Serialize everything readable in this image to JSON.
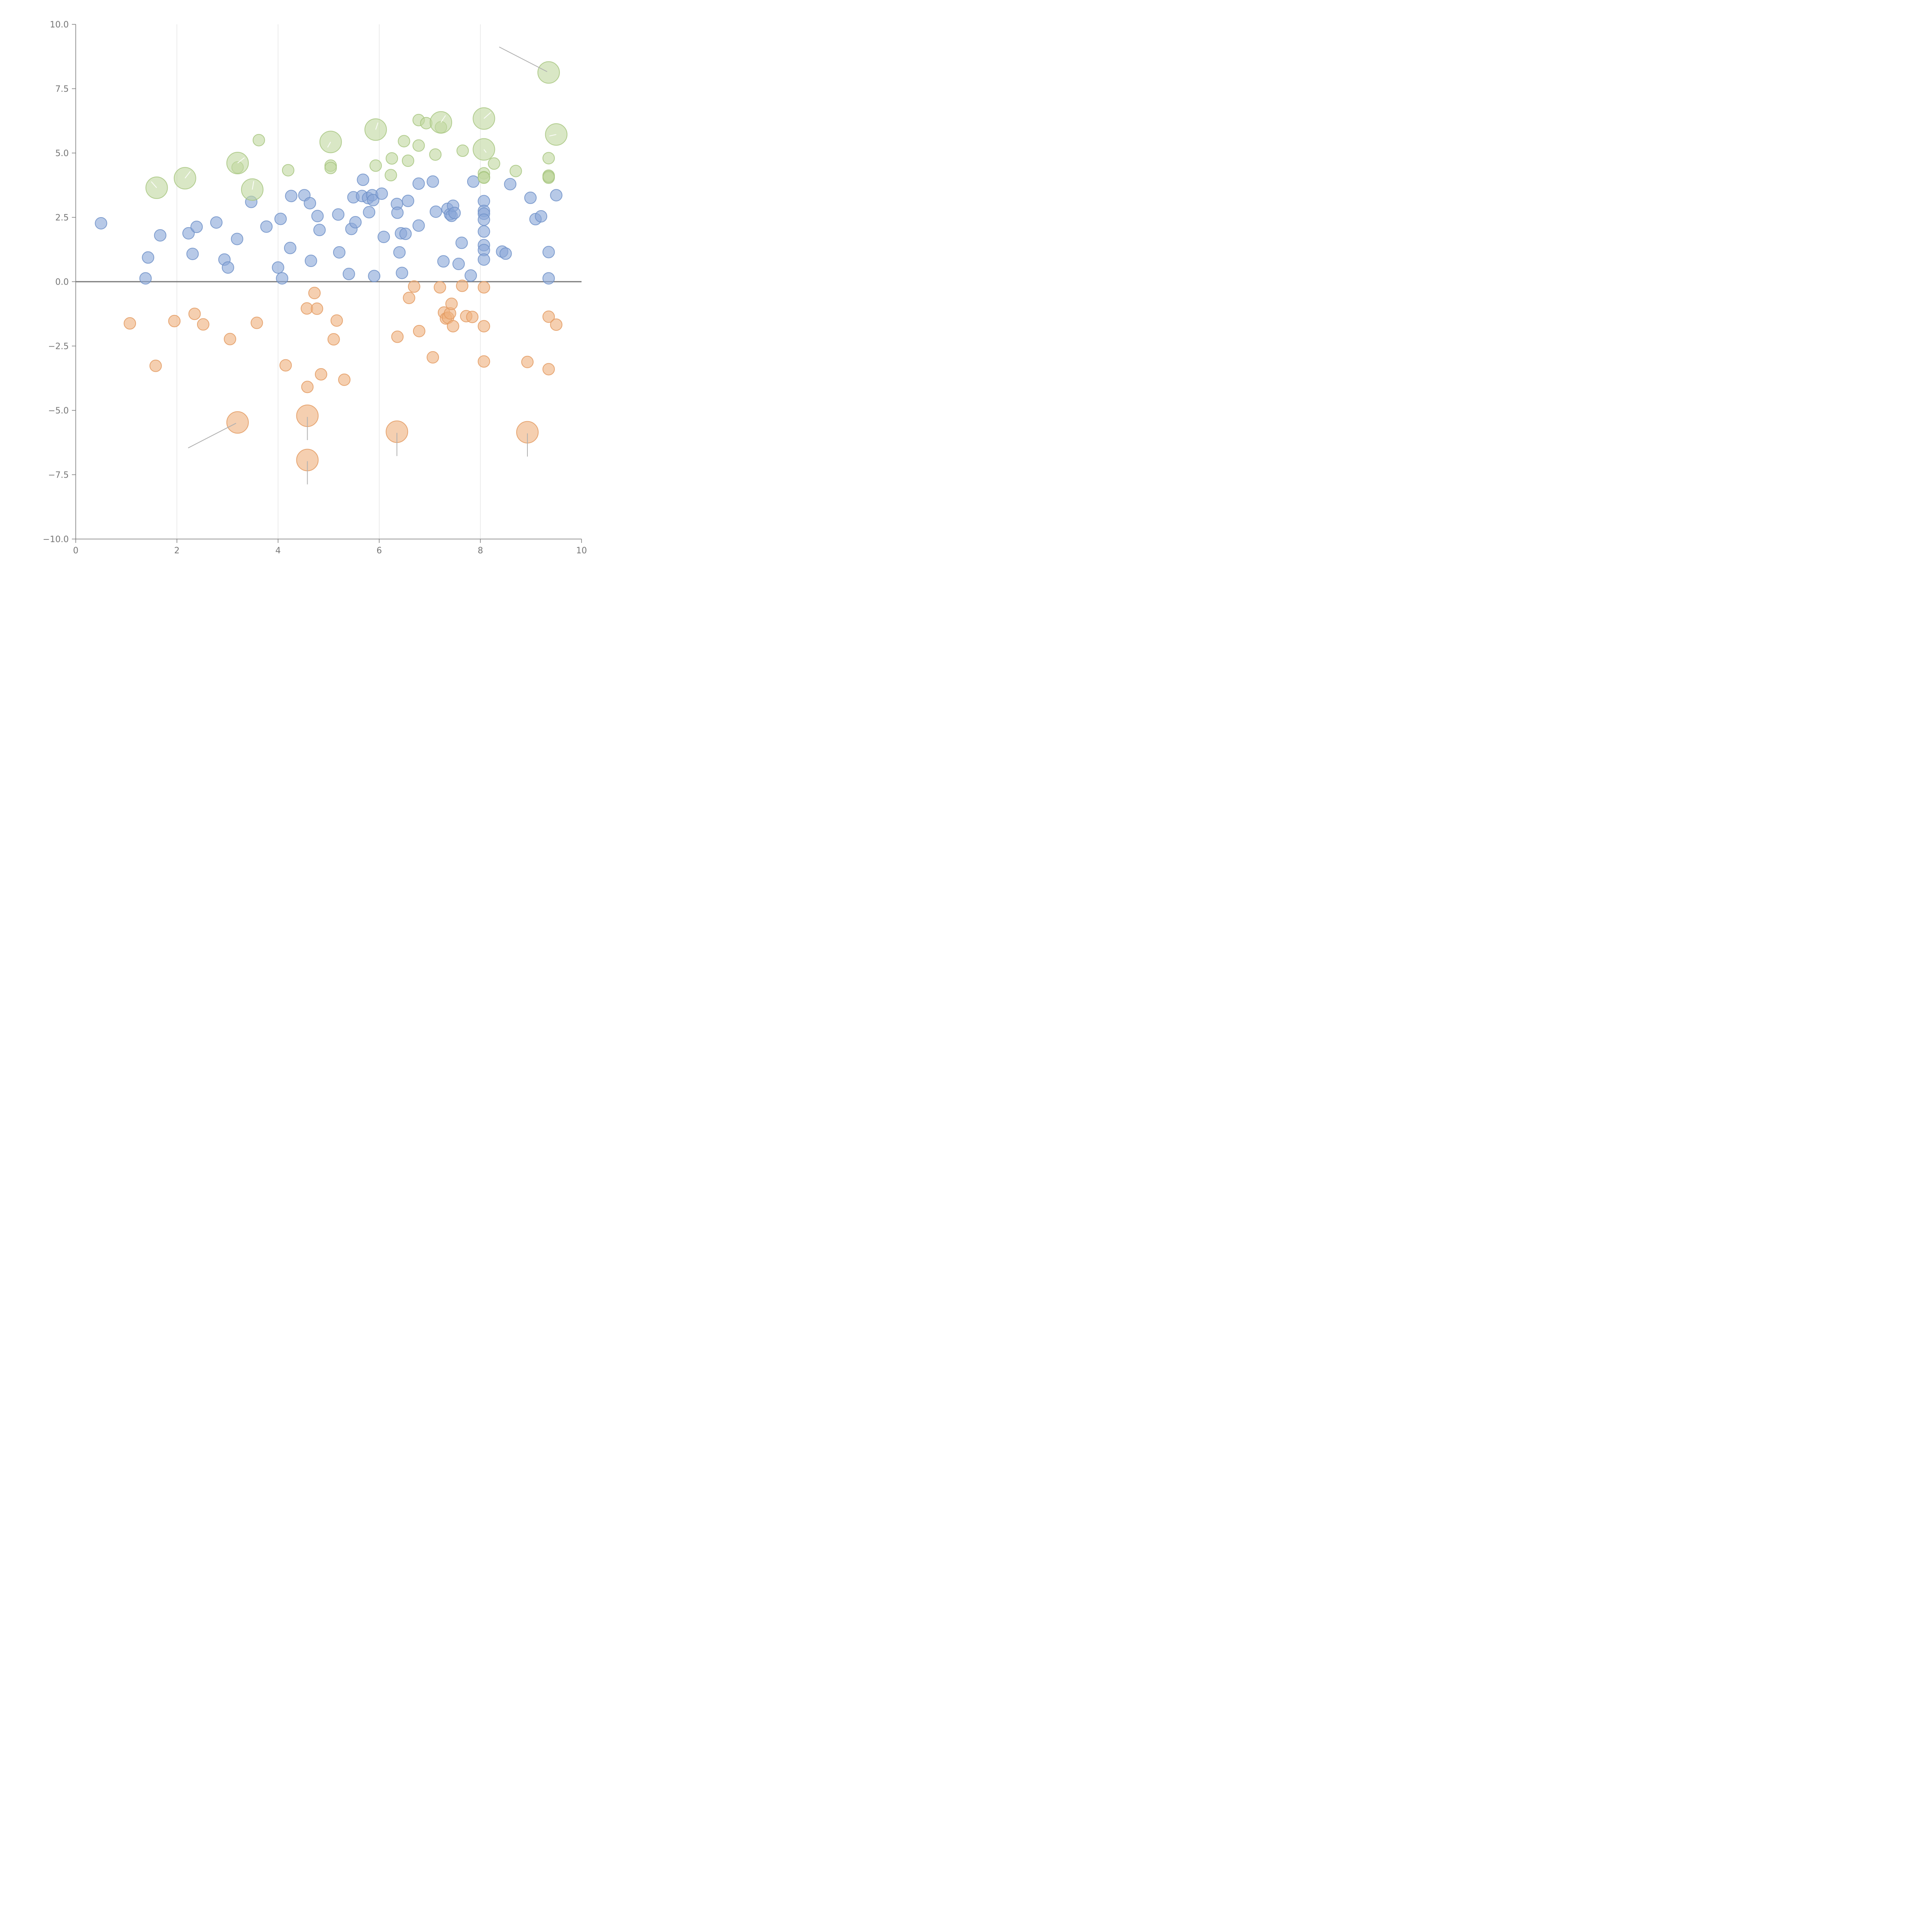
{
  "chart_data": {
    "type": "scatter",
    "title": "",
    "xlabel": "",
    "ylabel": "",
    "xlim": [
      0,
      10
    ],
    "ylim": [
      -10,
      10
    ],
    "grid": {
      "x": true,
      "y": false
    },
    "x_ticks": [
      0,
      2,
      4,
      6,
      8,
      10
    ],
    "x_tick_labels": [
      "0",
      "2",
      "4",
      "6",
      "8",
      "10"
    ],
    "y_ticks": [
      10,
      7.5,
      5,
      2.5,
      0,
      -2.5,
      -5,
      -7.5,
      -10
    ],
    "y_tick_labels": [
      "10.0",
      "7.5",
      "5.0",
      "2.5",
      "0.0",
      "−2.5",
      "−5.0",
      "−7.5",
      "−10.0"
    ],
    "reference_line_y": 0,
    "series": [
      {
        "name": "blue",
        "color": "#8aa8d8",
        "stroke": "#6f90c8",
        "points": [
          [
            0.5,
            2.27
          ],
          [
            1.43,
            0.94
          ],
          [
            1.38,
            0.13
          ],
          [
            1.67,
            1.8
          ],
          [
            2.23,
            1.88
          ],
          [
            2.39,
            2.13
          ],
          [
            2.31,
            1.08
          ],
          [
            2.78,
            2.3
          ],
          [
            2.94,
            0.86
          ],
          [
            3.01,
            0.55
          ],
          [
            3.19,
            1.66
          ],
          [
            3.47,
            3.1
          ],
          [
            3.77,
            2.14
          ],
          [
            4.0,
            0.55
          ],
          [
            4.08,
            0.13
          ],
          [
            4.05,
            2.44
          ],
          [
            4.24,
            1.31
          ],
          [
            4.26,
            3.33
          ],
          [
            4.52,
            3.36
          ],
          [
            4.63,
            3.05
          ],
          [
            4.65,
            0.81
          ],
          [
            4.78,
            2.55
          ],
          [
            4.82,
            2.01
          ],
          [
            5.19,
            2.61
          ],
          [
            5.21,
            1.14
          ],
          [
            5.4,
            0.3
          ],
          [
            5.45,
            2.05
          ],
          [
            5.49,
            3.28
          ],
          [
            5.53,
            2.31
          ],
          [
            5.66,
            3.33
          ],
          [
            5.68,
            3.96
          ],
          [
            5.78,
            3.25
          ],
          [
            5.8,
            2.7
          ],
          [
            5.86,
            3.36
          ],
          [
            5.88,
            3.17
          ],
          [
            5.9,
            0.22
          ],
          [
            6.05,
            3.42
          ],
          [
            6.09,
            1.74
          ],
          [
            6.35,
            3.02
          ],
          [
            6.36,
            2.68
          ],
          [
            6.4,
            1.14
          ],
          [
            6.43,
            1.88
          ],
          [
            6.45,
            0.34
          ],
          [
            6.52,
            1.86
          ],
          [
            6.57,
            3.14
          ],
          [
            6.78,
            3.81
          ],
          [
            6.78,
            2.18
          ],
          [
            7.06,
            3.89
          ],
          [
            7.12,
            2.72
          ],
          [
            7.27,
            0.79
          ],
          [
            7.35,
            2.83
          ],
          [
            7.4,
            2.62
          ],
          [
            7.43,
            2.56
          ],
          [
            7.46,
            2.95
          ],
          [
            7.49,
            2.67
          ],
          [
            7.57,
            0.69
          ],
          [
            7.63,
            1.51
          ],
          [
            7.81,
            0.24
          ],
          [
            7.86,
            3.89
          ],
          [
            8.07,
            3.13
          ],
          [
            8.07,
            2.75
          ],
          [
            8.07,
            2.64
          ],
          [
            8.07,
            2.41
          ],
          [
            8.07,
            1.95
          ],
          [
            8.07,
            1.42
          ],
          [
            8.07,
            1.23
          ],
          [
            8.07,
            0.86
          ],
          [
            8.43,
            1.17
          ],
          [
            8.5,
            1.09
          ],
          [
            8.59,
            3.79
          ],
          [
            8.99,
            3.26
          ],
          [
            9.09,
            2.43
          ],
          [
            9.2,
            2.54
          ],
          [
            9.35,
            1.15
          ],
          [
            9.35,
            0.13
          ],
          [
            9.5,
            3.36
          ]
        ]
      },
      {
        "name": "orange",
        "color": "#efb17f",
        "stroke": "#e39a60",
        "points": [
          [
            1.07,
            -1.62
          ],
          [
            1.58,
            -3.27
          ],
          [
            1.95,
            -1.53
          ],
          [
            2.35,
            -1.25
          ],
          [
            2.52,
            -1.66
          ],
          [
            3.05,
            -2.23
          ],
          [
            3.58,
            -1.6
          ],
          [
            4.15,
            -3.25
          ],
          [
            4.57,
            -1.04
          ],
          [
            4.72,
            -0.44
          ],
          [
            4.77,
            -1.05
          ],
          [
            4.85,
            -3.6
          ],
          [
            5.1,
            -2.24
          ],
          [
            5.16,
            -1.51
          ],
          [
            5.31,
            -3.81
          ],
          [
            6.36,
            -2.14
          ],
          [
            6.59,
            -0.63
          ],
          [
            6.69,
            -0.19
          ],
          [
            6.79,
            -1.92
          ],
          [
            7.06,
            -2.94
          ],
          [
            7.2,
            -0.22
          ],
          [
            7.28,
            -1.2
          ],
          [
            7.32,
            -1.43
          ],
          [
            7.36,
            -1.4
          ],
          [
            7.4,
            -1.23
          ],
          [
            7.43,
            -0.86
          ],
          [
            7.46,
            -1.73
          ],
          [
            7.64,
            -0.16
          ],
          [
            7.72,
            -1.34
          ],
          [
            7.84,
            -1.37
          ],
          [
            8.07,
            -0.22
          ],
          [
            8.07,
            -1.73
          ],
          [
            8.07,
            -3.1
          ],
          [
            8.93,
            -3.12
          ],
          [
            9.35,
            -1.36
          ],
          [
            9.35,
            -3.4
          ],
          [
            9.5,
            -1.67
          ],
          [
            4.58,
            -4.09
          ]
        ],
        "highlighted": [
          [
            3.2,
            -5.47
          ],
          [
            4.58,
            -5.21
          ],
          [
            4.58,
            -6.93
          ],
          [
            6.35,
            -5.83
          ],
          [
            8.93,
            -5.85
          ]
        ]
      },
      {
        "name": "green",
        "color": "#c2d9a2",
        "stroke": "#a7c67f",
        "points": [
          [
            3.2,
            4.44
          ],
          [
            3.62,
            5.5
          ],
          [
            4.2,
            4.33
          ],
          [
            5.04,
            4.51
          ],
          [
            5.04,
            4.42
          ],
          [
            5.93,
            4.51
          ],
          [
            6.23,
            4.14
          ],
          [
            6.25,
            4.79
          ],
          [
            6.49,
            5.46
          ],
          [
            6.57,
            4.7
          ],
          [
            6.78,
            6.28
          ],
          [
            6.78,
            5.29
          ],
          [
            6.93,
            6.16
          ],
          [
            7.11,
            4.94
          ],
          [
            7.22,
            6.0
          ],
          [
            7.65,
            5.09
          ],
          [
            8.07,
            4.21
          ],
          [
            8.07,
            4.06
          ],
          [
            8.07,
            4.04
          ],
          [
            8.27,
            4.59
          ],
          [
            8.7,
            4.3
          ],
          [
            9.35,
            4.8
          ],
          [
            9.35,
            4.12
          ],
          [
            9.35,
            4.04
          ],
          [
            9.35,
            4.08
          ]
        ],
        "highlighted": [
          [
            1.6,
            3.65
          ],
          [
            2.16,
            4.02
          ],
          [
            3.2,
            4.61
          ],
          [
            3.49,
            3.58
          ],
          [
            5.04,
            5.43
          ],
          [
            5.93,
            5.91
          ],
          [
            7.22,
            6.19
          ],
          [
            8.07,
            6.34
          ],
          [
            8.07,
            5.14
          ],
          [
            9.35,
            8.13
          ],
          [
            9.5,
            5.72
          ]
        ]
      }
    ]
  }
}
